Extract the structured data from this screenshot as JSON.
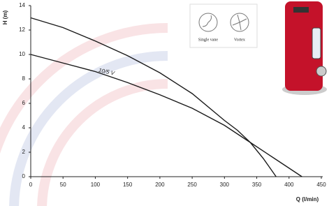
{
  "chart_data": {
    "type": "line",
    "y_label": "H (m)",
    "x_label": "Q (l/min)",
    "xlim": [
      0,
      450
    ],
    "xticks": [
      0,
      50,
      100,
      150,
      200,
      250,
      300,
      350,
      400,
      450
    ],
    "ylim": [
      0,
      14
    ],
    "yticks": [
      0,
      2,
      4,
      6,
      8,
      10,
      12,
      14
    ],
    "series": [
      {
        "color": "#1a1a1a",
        "x": [
          0,
          50,
          100,
          150,
          200,
          250,
          300,
          320,
          340,
          360,
          380
        ],
        "values": [
          13,
          12.2,
          11.1,
          9.9,
          8.5,
          6.8,
          4.6,
          3.8,
          2.8,
          1.5,
          0
        ]
      },
      {
        "color": "#1a1a1a",
        "x": [
          0,
          50,
          100,
          150,
          200,
          250,
          300,
          340,
          380,
          420
        ],
        "values": [
          10,
          9.3,
          8.6,
          7.7,
          6.7,
          5.6,
          4.2,
          2.8,
          1.4,
          0
        ]
      }
    ],
    "annotation": {
      "text": "10/5 V",
      "x": 105,
      "y": 8.7,
      "series": 1
    },
    "impeller_labels": [
      "Single vane",
      "Vortex"
    ]
  }
}
